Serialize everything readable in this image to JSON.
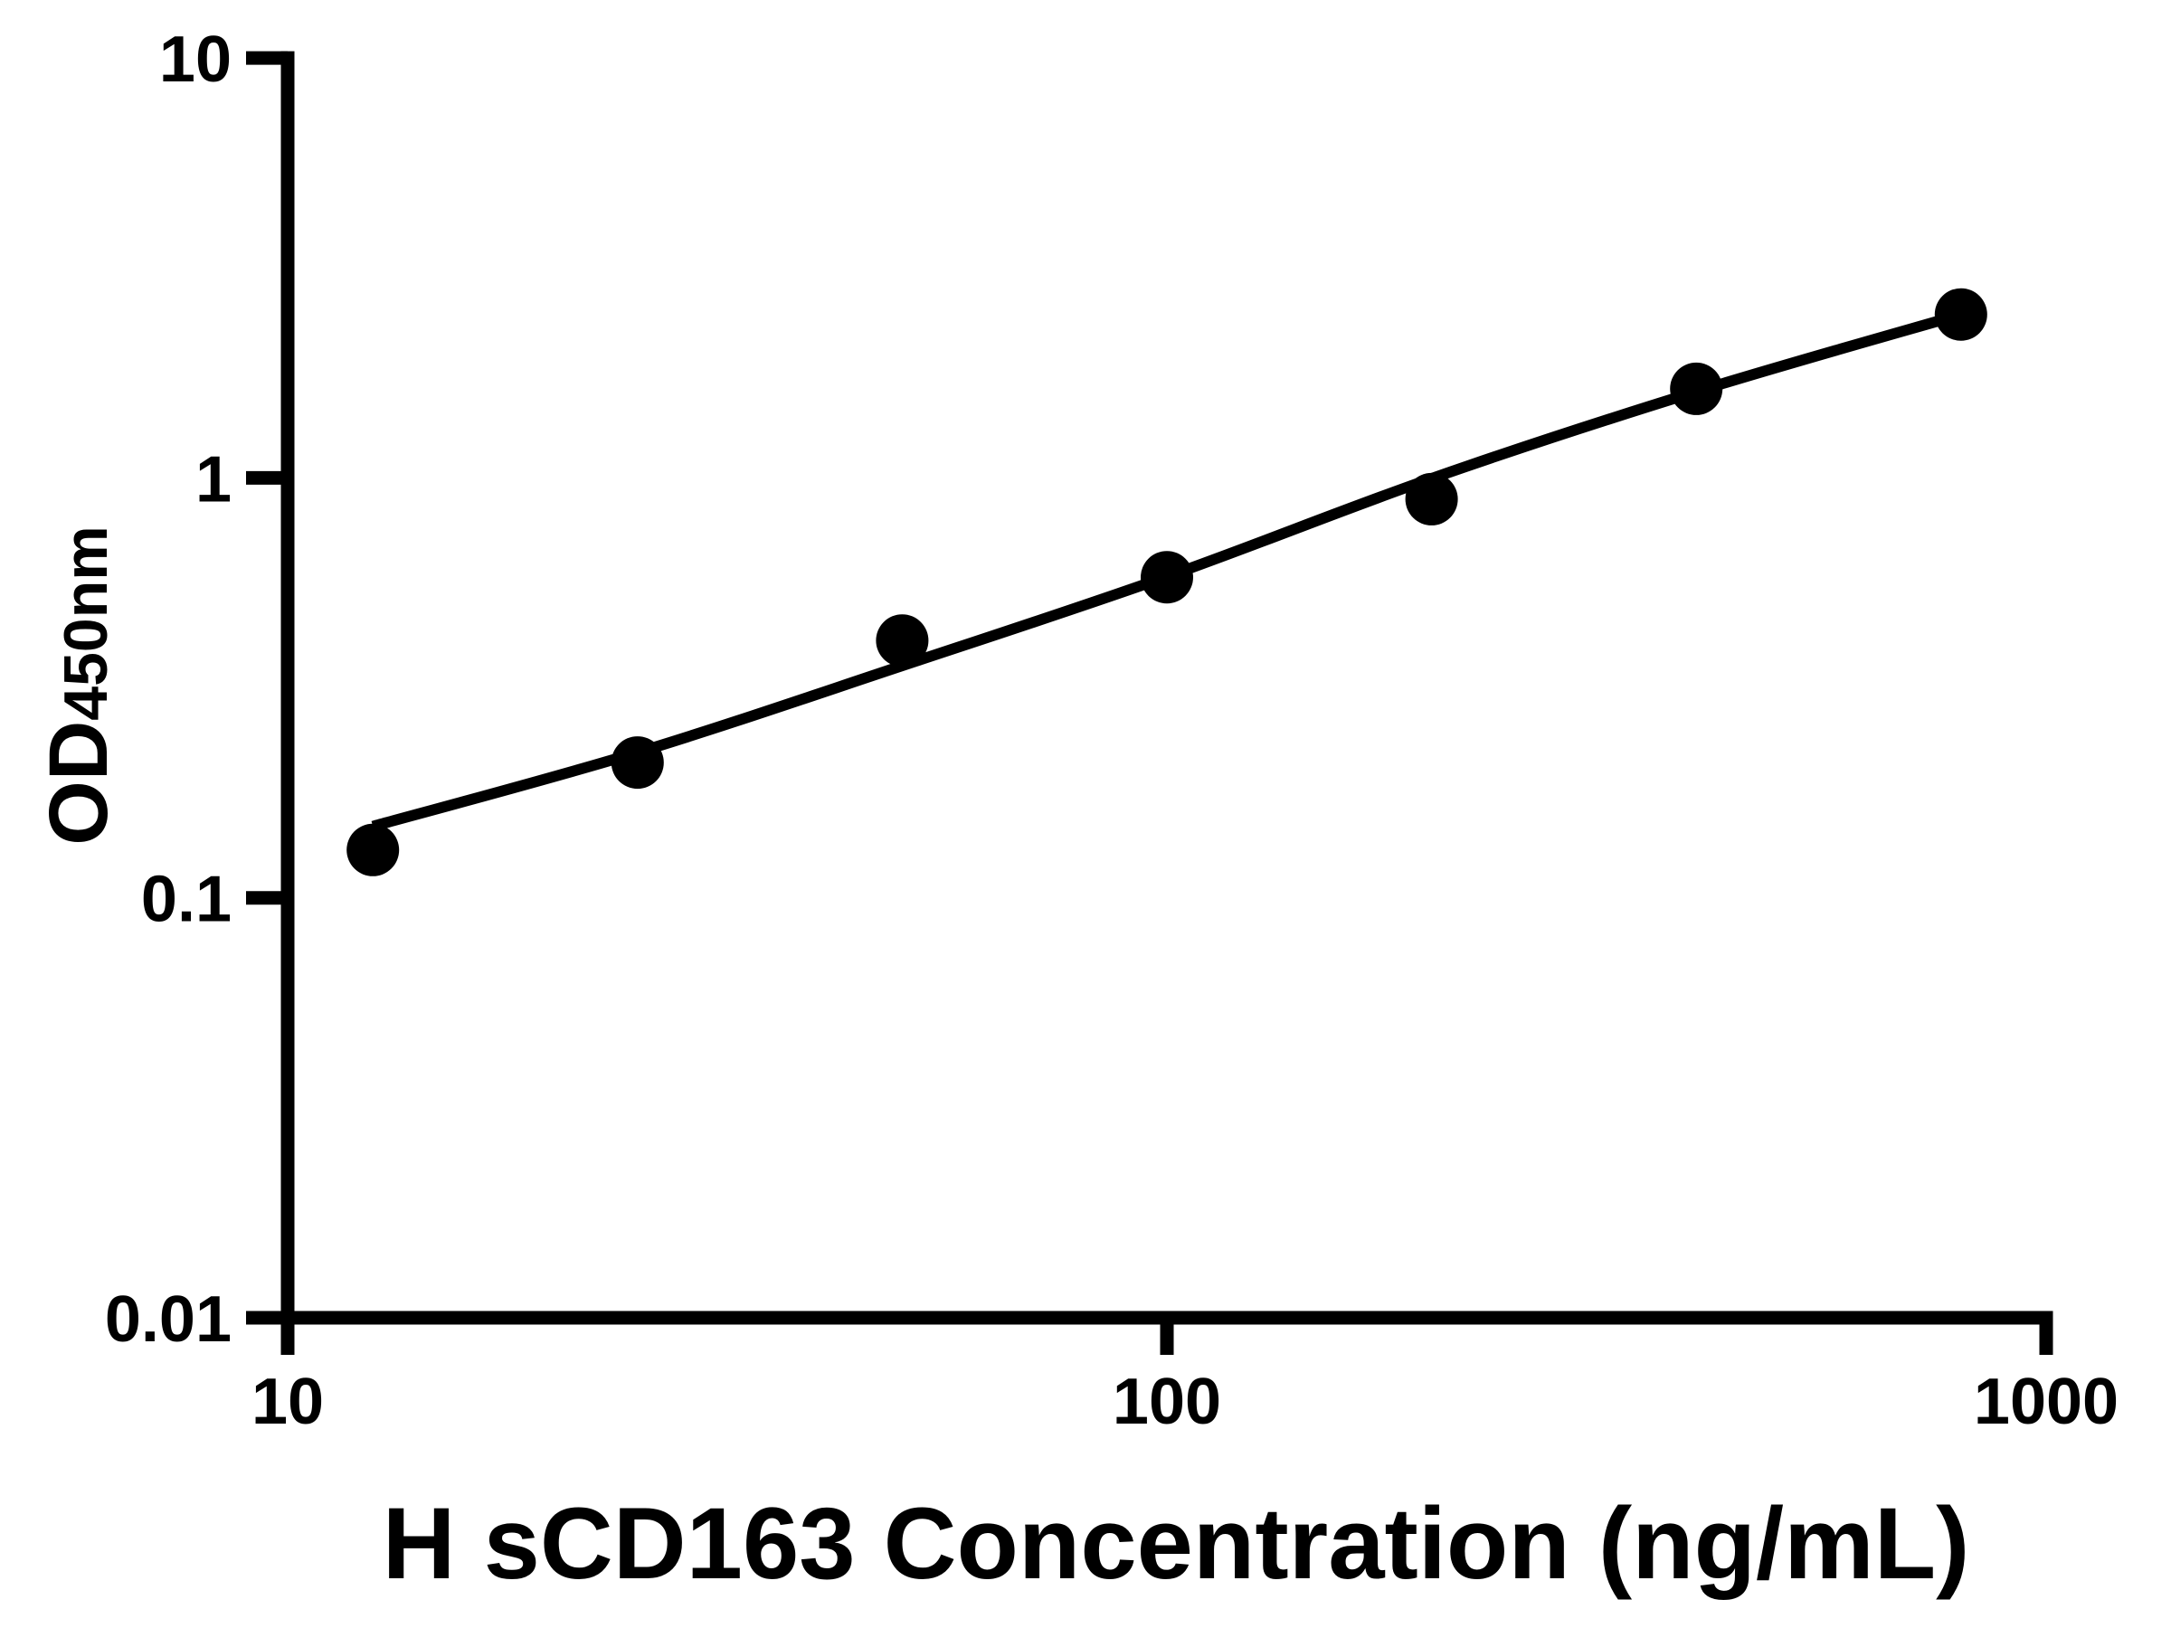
{
  "chart_data": {
    "type": "scatter",
    "title": "",
    "xlabel": "H sCD163 Concentration (ng/mL)",
    "ylabel_main": "OD",
    "ylabel_sub": "450nm",
    "x_scale": "log",
    "y_scale": "log",
    "xlim": [
      10,
      1000
    ],
    "ylim": [
      0.01,
      10
    ],
    "grid": false,
    "legend": false,
    "colors": {
      "foreground": "#000000",
      "background": "#ffffff"
    },
    "x_ticks": [
      {
        "value": 10,
        "label": "10"
      },
      {
        "value": 100,
        "label": "100"
      },
      {
        "value": 1000,
        "label": "1000"
      }
    ],
    "y_ticks": [
      {
        "value": 10,
        "label": "10"
      },
      {
        "value": 1,
        "label": "1"
      },
      {
        "value": 0.1,
        "label": "0.1"
      },
      {
        "value": 0.01,
        "label": "0.01"
      }
    ],
    "series": [
      {
        "name": "standard-points",
        "marker": "circle",
        "color": "#000000",
        "x": [
          12.5,
          25,
          50,
          100,
          200,
          400,
          800
        ],
        "od": [
          0.13,
          0.21,
          0.41,
          0.58,
          0.89,
          1.63,
          2.45
        ]
      }
    ],
    "fit_curve": {
      "name": "fitted-standard-curve",
      "color": "#000000",
      "x": [
        12.5,
        25,
        50,
        100,
        200,
        400,
        800
      ],
      "od": [
        0.148,
        0.222,
        0.357,
        0.582,
        0.997,
        1.605,
        2.45
      ]
    }
  }
}
